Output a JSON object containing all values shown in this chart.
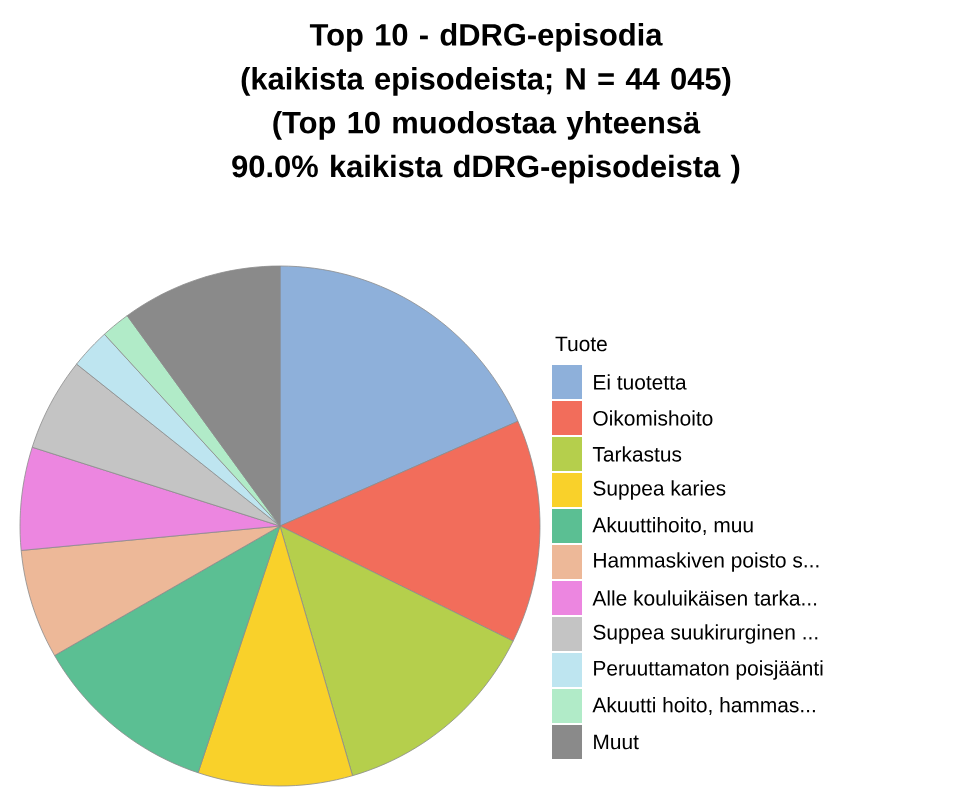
{
  "chart_data": {
    "type": "pie",
    "title": "Top 10 - dDRG-episodia",
    "subtitle": "(kaikista episodeista; N = 44 045) (Top 10 muodostaa yhteensä 90.0% kaikista dDRG-episodeista )",
    "legend_title": "Tuote",
    "legend": "right",
    "categories": [
      "Ei tuotetta",
      "Oikomishoito",
      "Tarkastus",
      "Suppea karies",
      "Akuuttihoito, muu",
      "Hammaskiven poisto s...",
      "Alle kouluikäisen tarka...",
      "Suppea suukirurginen ...",
      "Peruuttamaton poisjäänti",
      "Akuutti hoito, hammas...",
      "Muut"
    ],
    "values": [
      18.4,
      13.9,
      13.2,
      9.6,
      11.6,
      6.8,
      6.4,
      5.8,
      2.5,
      1.8,
      10.0
    ],
    "colors": [
      "#8eb0da",
      "#f26d5b",
      "#b5cf4c",
      "#f9d12a",
      "#5bbf93",
      "#edb898",
      "#ec86e0",
      "#c4c4c4",
      "#bee5f0",
      "#b1ebc8",
      "#8a8a8a"
    ]
  }
}
